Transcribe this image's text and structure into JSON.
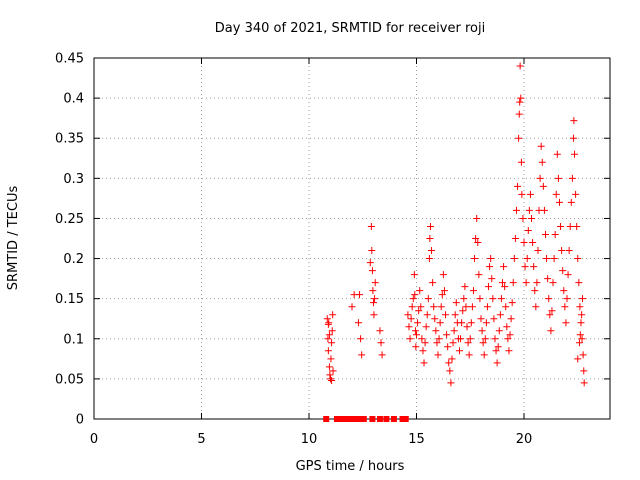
{
  "chart_data": {
    "type": "scatter",
    "title": "Day 340 of 2021, SRMTID for receiver roji",
    "xlabel": "GPS time / hours",
    "ylabel": "SRMTID / TECUs",
    "xlim": [
      0,
      24
    ],
    "ylim": [
      0,
      0.45
    ],
    "xticks": [
      0,
      5,
      10,
      15,
      20
    ],
    "xtick_labels": [
      "0",
      "5",
      "10",
      "15",
      "20"
    ],
    "yticks": [
      0,
      0.05,
      0.1,
      0.15,
      0.2,
      0.25,
      0.3,
      0.35,
      0.4,
      0.45
    ],
    "ytick_labels": [
      "0",
      "0.05",
      "0.1",
      "0.15",
      "0.2",
      "0.25",
      "0.3",
      "0.35",
      "0.4",
      "0.45"
    ],
    "grid": true,
    "marker": "plus",
    "marker_color": "#ff0000",
    "zero_marker": "square",
    "zero_points_x": [
      10.8,
      11.3,
      11.45,
      11.6,
      11.75,
      11.9,
      12.05,
      12.2,
      12.4,
      12.55,
      12.95,
      13.3,
      13.6,
      13.95,
      14.35,
      14.5
    ],
    "points": [
      [
        10.85,
        0.125
      ],
      [
        10.88,
        0.1
      ],
      [
        10.9,
        0.085
      ],
      [
        10.92,
        0.12
      ],
      [
        10.95,
        0.065
      ],
      [
        10.97,
        0.055
      ],
      [
        11.0,
        0.05
      ],
      [
        11.02,
        0.075
      ],
      [
        11.05,
        0.095
      ],
      [
        11.08,
        0.11
      ],
      [
        11.1,
        0.13
      ],
      [
        11.12,
        0.06
      ],
      [
        10.95,
        0.105
      ],
      [
        11.05,
        0.048
      ],
      [
        10.9,
        0.118
      ],
      [
        12.0,
        0.14
      ],
      [
        12.1,
        0.155
      ],
      [
        12.3,
        0.12
      ],
      [
        12.35,
        0.155
      ],
      [
        12.4,
        0.1
      ],
      [
        12.45,
        0.08
      ],
      [
        12.9,
        0.24
      ],
      [
        12.92,
        0.21
      ],
      [
        12.95,
        0.185
      ],
      [
        12.97,
        0.16
      ],
      [
        13.0,
        0.145
      ],
      [
        13.02,
        0.13
      ],
      [
        13.05,
        0.15
      ],
      [
        13.08,
        0.17
      ],
      [
        13.3,
        0.11
      ],
      [
        13.35,
        0.095
      ],
      [
        13.4,
        0.08
      ],
      [
        12.85,
        0.195
      ],
      [
        14.6,
        0.13
      ],
      [
        14.65,
        0.115
      ],
      [
        14.7,
        0.1
      ],
      [
        14.75,
        0.125
      ],
      [
        14.8,
        0.14
      ],
      [
        14.85,
        0.15
      ],
      [
        14.9,
        0.18
      ],
      [
        14.92,
        0.155
      ],
      [
        14.95,
        0.11
      ],
      [
        14.97,
        0.09
      ],
      [
        15.0,
        0.105
      ],
      [
        15.05,
        0.12
      ],
      [
        15.1,
        0.135
      ],
      [
        15.15,
        0.16
      ],
      [
        15.2,
        0.14
      ],
      [
        15.25,
        0.1
      ],
      [
        15.3,
        0.085
      ],
      [
        15.35,
        0.07
      ],
      [
        15.4,
        0.095
      ],
      [
        15.45,
        0.115
      ],
      [
        15.5,
        0.13
      ],
      [
        15.55,
        0.15
      ],
      [
        15.6,
        0.2
      ],
      [
        15.62,
        0.225
      ],
      [
        15.65,
        0.24
      ],
      [
        15.7,
        0.21
      ],
      [
        15.75,
        0.17
      ],
      [
        15.8,
        0.14
      ],
      [
        15.85,
        0.125
      ],
      [
        15.9,
        0.11
      ],
      [
        15.95,
        0.095
      ],
      [
        16.0,
        0.08
      ],
      [
        16.05,
        0.1
      ],
      [
        16.1,
        0.12
      ],
      [
        16.15,
        0.14
      ],
      [
        16.2,
        0.155
      ],
      [
        16.25,
        0.18
      ],
      [
        16.3,
        0.16
      ],
      [
        16.35,
        0.13
      ],
      [
        16.4,
        0.105
      ],
      [
        16.45,
        0.09
      ],
      [
        16.5,
        0.07
      ],
      [
        16.55,
        0.06
      ],
      [
        16.6,
        0.045
      ],
      [
        16.65,
        0.075
      ],
      [
        16.7,
        0.095
      ],
      [
        16.75,
        0.11
      ],
      [
        16.8,
        0.13
      ],
      [
        16.85,
        0.145
      ],
      [
        16.9,
        0.12
      ],
      [
        16.95,
        0.1
      ],
      [
        17.0,
        0.085
      ],
      [
        17.05,
        0.1
      ],
      [
        17.1,
        0.12
      ],
      [
        17.15,
        0.135
      ],
      [
        17.2,
        0.15
      ],
      [
        17.25,
        0.165
      ],
      [
        17.3,
        0.14
      ],
      [
        17.35,
        0.115
      ],
      [
        17.4,
        0.095
      ],
      [
        17.45,
        0.08
      ],
      [
        17.5,
        0.1
      ],
      [
        17.55,
        0.12
      ],
      [
        17.6,
        0.14
      ],
      [
        17.65,
        0.16
      ],
      [
        17.7,
        0.2
      ],
      [
        17.75,
        0.225
      ],
      [
        17.8,
        0.25
      ],
      [
        17.85,
        0.22
      ],
      [
        17.9,
        0.18
      ],
      [
        17.95,
        0.15
      ],
      [
        18.0,
        0.125
      ],
      [
        18.05,
        0.11
      ],
      [
        18.1,
        0.095
      ],
      [
        18.15,
        0.08
      ],
      [
        18.2,
        0.1
      ],
      [
        18.25,
        0.12
      ],
      [
        18.3,
        0.14
      ],
      [
        18.35,
        0.165
      ],
      [
        18.4,
        0.19
      ],
      [
        18.45,
        0.2
      ],
      [
        18.5,
        0.175
      ],
      [
        18.55,
        0.15
      ],
      [
        18.6,
        0.125
      ],
      [
        18.65,
        0.1
      ],
      [
        18.7,
        0.085
      ],
      [
        18.75,
        0.07
      ],
      [
        18.8,
        0.09
      ],
      [
        18.85,
        0.11
      ],
      [
        18.9,
        0.13
      ],
      [
        18.95,
        0.15
      ],
      [
        19.0,
        0.17
      ],
      [
        19.05,
        0.19
      ],
      [
        19.1,
        0.165
      ],
      [
        19.15,
        0.14
      ],
      [
        19.2,
        0.115
      ],
      [
        19.25,
        0.1
      ],
      [
        19.3,
        0.085
      ],
      [
        19.35,
        0.105
      ],
      [
        19.4,
        0.125
      ],
      [
        19.45,
        0.145
      ],
      [
        19.5,
        0.17
      ],
      [
        19.55,
        0.2
      ],
      [
        19.6,
        0.225
      ],
      [
        19.65,
        0.26
      ],
      [
        19.7,
        0.29
      ],
      [
        19.75,
        0.35
      ],
      [
        19.78,
        0.38
      ],
      [
        19.8,
        0.395
      ],
      [
        19.82,
        0.44
      ],
      [
        19.85,
        0.4
      ],
      [
        19.88,
        0.32
      ],
      [
        19.9,
        0.28
      ],
      [
        19.95,
        0.25
      ],
      [
        20.0,
        0.22
      ],
      [
        20.05,
        0.19
      ],
      [
        20.1,
        0.17
      ],
      [
        20.15,
        0.2
      ],
      [
        20.2,
        0.235
      ],
      [
        20.25,
        0.26
      ],
      [
        20.3,
        0.28
      ],
      [
        20.35,
        0.25
      ],
      [
        20.4,
        0.22
      ],
      [
        20.45,
        0.19
      ],
      [
        20.5,
        0.16
      ],
      [
        20.55,
        0.14
      ],
      [
        20.6,
        0.17
      ],
      [
        20.65,
        0.21
      ],
      [
        20.7,
        0.26
      ],
      [
        20.75,
        0.3
      ],
      [
        20.8,
        0.34
      ],
      [
        20.85,
        0.32
      ],
      [
        20.9,
        0.29
      ],
      [
        20.95,
        0.26
      ],
      [
        21.0,
        0.23
      ],
      [
        21.05,
        0.2
      ],
      [
        21.1,
        0.175
      ],
      [
        21.15,
        0.15
      ],
      [
        21.2,
        0.13
      ],
      [
        21.25,
        0.11
      ],
      [
        21.3,
        0.135
      ],
      [
        21.35,
        0.17
      ],
      [
        21.4,
        0.2
      ],
      [
        21.45,
        0.23
      ],
      [
        21.5,
        0.28
      ],
      [
        21.55,
        0.33
      ],
      [
        21.6,
        0.3
      ],
      [
        21.65,
        0.27
      ],
      [
        21.7,
        0.24
      ],
      [
        21.75,
        0.21
      ],
      [
        21.8,
        0.185
      ],
      [
        21.85,
        0.16
      ],
      [
        21.9,
        0.14
      ],
      [
        21.95,
        0.12
      ],
      [
        22.0,
        0.15
      ],
      [
        22.05,
        0.18
      ],
      [
        22.1,
        0.21
      ],
      [
        22.15,
        0.24
      ],
      [
        22.2,
        0.27
      ],
      [
        22.25,
        0.3
      ],
      [
        22.3,
        0.35
      ],
      [
        22.32,
        0.372
      ],
      [
        22.35,
        0.33
      ],
      [
        22.4,
        0.28
      ],
      [
        22.45,
        0.24
      ],
      [
        22.5,
        0.2
      ],
      [
        22.55,
        0.17
      ],
      [
        22.6,
        0.14
      ],
      [
        22.65,
        0.12
      ],
      [
        22.7,
        0.1
      ],
      [
        22.75,
        0.08
      ],
      [
        22.78,
        0.06
      ],
      [
        22.8,
        0.045
      ],
      [
        22.72,
        0.15
      ],
      [
        22.68,
        0.13
      ],
      [
        22.62,
        0.105
      ],
      [
        22.58,
        0.095
      ],
      [
        22.5,
        0.075
      ]
    ]
  }
}
